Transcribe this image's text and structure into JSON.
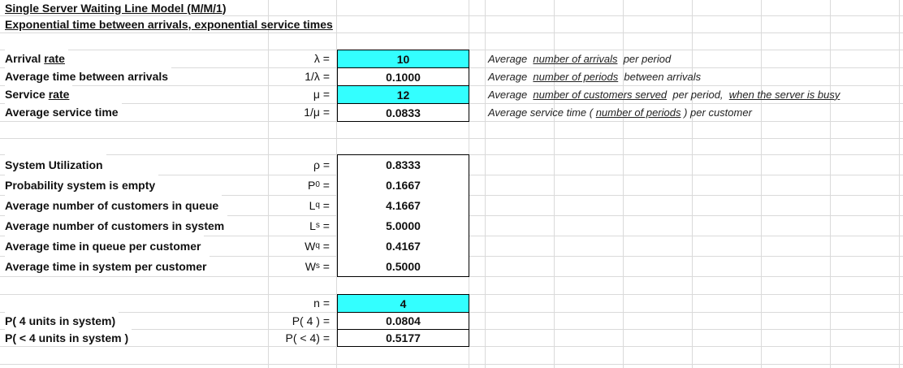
{
  "header": {
    "title": "Single Server Waiting Line Model   (M/M/1)",
    "subtitle": "Exponential time between arrivals, exponential service times"
  },
  "inputs": [
    {
      "label": [
        "Arrival ",
        {
          "text": "rate",
          "underline": true
        }
      ],
      "symbol": {
        "base": "λ ="
      },
      "value": "10",
      "input": true,
      "note": [
        "Average  ",
        {
          "text": "number of arrivals",
          "underline": true
        },
        "  per period"
      ]
    },
    {
      "label": [
        "Average time between arrivals"
      ],
      "symbol": {
        "base": "1/λ ="
      },
      "value": "0.1000",
      "input": false,
      "note": [
        "Average  ",
        {
          "text": "number of periods",
          "underline": true
        },
        "  between arrivals"
      ]
    },
    {
      "label": [
        "Service ",
        {
          "text": "rate",
          "underline": true
        }
      ],
      "symbol": {
        "base": "μ ="
      },
      "value": "12",
      "input": true,
      "note": [
        "Average  ",
        {
          "text": "number of customers served",
          "underline": true
        },
        "  per period,  ",
        {
          "text": "when the server is busy",
          "underline": true
        }
      ]
    },
    {
      "label": [
        "Average service time"
      ],
      "symbol": {
        "base": "1/μ ="
      },
      "value": "0.0833",
      "input": false,
      "note": [
        "Average service time ( ",
        {
          "text": "number of periods",
          "underline": true
        },
        " ) per customer"
      ]
    }
  ],
  "results": [
    {
      "label": [
        "System Utilization"
      ],
      "symbol": {
        "base": "ρ ="
      },
      "value": "0.8333"
    },
    {
      "label": [
        "Probability system is empty"
      ],
      "symbol": {
        "base": "P",
        "sub": "0",
        "eq": " ="
      },
      "value": "0.1667"
    },
    {
      "label": [
        "Average number of customers in queue"
      ],
      "symbol": {
        "base": "L",
        "sub": "q",
        "eq": " ="
      },
      "value": "4.1667"
    },
    {
      "label": [
        "Average number of customers in system"
      ],
      "symbol": {
        "base": "L",
        "sub": "s",
        "eq": " ="
      },
      "value": "5.0000"
    },
    {
      "label": [
        "Average time in queue per customer"
      ],
      "symbol": {
        "base": "W",
        "sub": "q",
        "eq": " ="
      },
      "value": "0.4167"
    },
    {
      "label": [
        "Average time in system per customer"
      ],
      "symbol": {
        "base": "W",
        "sub": "s",
        "eq": " ="
      },
      "value": "0.5000"
    }
  ],
  "units": [
    {
      "label": [],
      "symbol": {
        "base": "n ="
      },
      "value": "4",
      "input": true
    },
    {
      "label": [
        "P( 4 units in system)"
      ],
      "symbol": {
        "base": "P( 4 ) ="
      },
      "value": "0.0804",
      "input": false
    },
    {
      "label": [
        "P( < 4 units in system )"
      ],
      "symbol": {
        "base": "P( < 4) ="
      },
      "value": "0.5177",
      "input": false
    }
  ]
}
